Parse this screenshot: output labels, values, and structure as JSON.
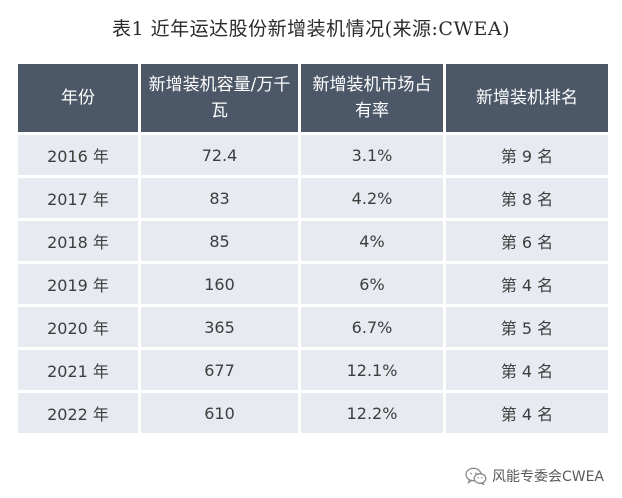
{
  "title": "表1 近年运达股份新增装机情况(来源:CWEA)",
  "table": {
    "headers": [
      "年份",
      "新增装机容量/万千瓦",
      "新增装机市场占有率",
      "新增装机排名"
    ],
    "rows": [
      [
        "2016 年",
        "72.4",
        "3.1%",
        "第 9 名"
      ],
      [
        "2017 年",
        "83",
        "4.2%",
        "第 8 名"
      ],
      [
        "2018 年",
        "85",
        "4%",
        "第 6 名"
      ],
      [
        "2019 年",
        "160",
        "6%",
        "第 4 名"
      ],
      [
        "2020 年",
        "365",
        "6.7%",
        "第 5 名"
      ],
      [
        "2021 年",
        "677",
        "12.1%",
        "第 4 名"
      ],
      [
        "2022 年",
        "610",
        "12.2%",
        "第 4 名"
      ]
    ]
  },
  "footer": {
    "icon": "wechat-icon",
    "text": "风能专委会CWEA"
  }
}
